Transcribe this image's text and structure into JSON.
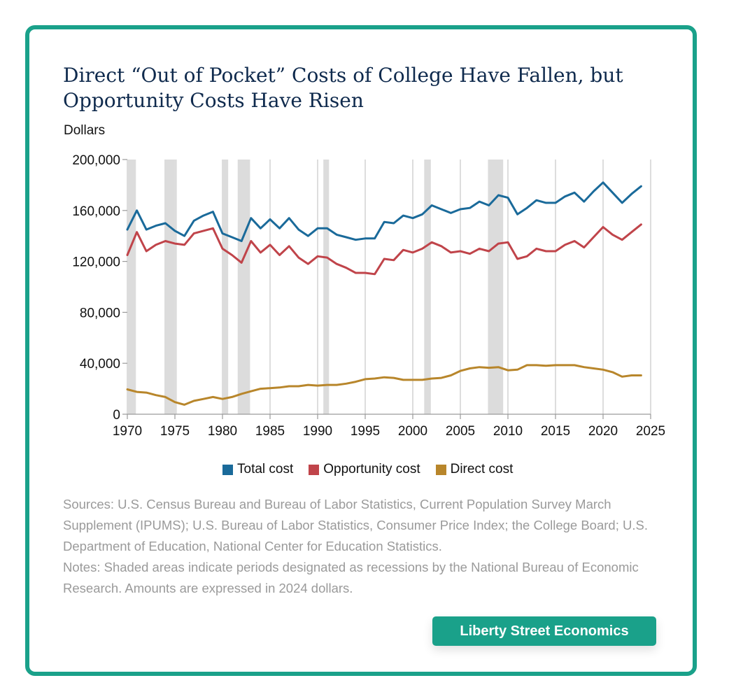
{
  "title": "Direct “Out of Pocket” Costs of College Have Fallen, but Opportunity Costs Have Risen",
  "y_unit_label": "Dollars",
  "sources": "Sources: U.S. Census Bureau and Bureau of Labor Statistics, Current Population Survey March Supplement (IPUMS); U.S. Bureau of Labor Statistics, Consumer Price Index; the College Board; U.S. Department of Education, National Center for Education Statistics.",
  "notes": "Notes: Shaded areas indicate periods designated as recessions by the National Bureau of Economic Research. Amounts are expressed in 2024 dollars.",
  "brand": "Liberty Street Economics",
  "colors": {
    "accent": "#1aa18a",
    "total": "#1a6a9a",
    "opportunity": "#c0444a",
    "direct": "#b8862b",
    "recession": "#dcdcdc"
  },
  "chart_data": {
    "type": "line",
    "ylabel": "Dollars",
    "xlim": [
      1970,
      2025
    ],
    "ylim": [
      0,
      200000
    ],
    "x_ticks": [
      1970,
      1975,
      1980,
      1985,
      1990,
      1995,
      2000,
      2005,
      2010,
      2015,
      2020,
      2025
    ],
    "y_ticks": [
      0,
      40000,
      80000,
      120000,
      160000,
      200000
    ],
    "x_tick_labels": [
      "1970",
      "1975",
      "1980",
      "1985",
      "1990",
      "1995",
      "2000",
      "2005",
      "2010",
      "2015",
      "2020",
      "2025"
    ],
    "y_tick_labels": [
      "0",
      "40,000",
      "80,000",
      "120,000",
      "160,000",
      "200,000"
    ],
    "recessions": [
      [
        1970.0,
        1970.9
      ],
      [
        1973.9,
        1975.2
      ],
      [
        1980.0,
        1980.6
      ],
      [
        1981.6,
        1982.9
      ],
      [
        1990.6,
        1991.2
      ],
      [
        2001.2,
        2001.9
      ],
      [
        2007.9,
        2009.5
      ]
    ],
    "legend_position": "bottom",
    "grid": "vertical",
    "x": [
      1970,
      1971,
      1972,
      1973,
      1974,
      1975,
      1976,
      1977,
      1978,
      1979,
      1980,
      1981,
      1982,
      1983,
      1984,
      1985,
      1986,
      1987,
      1988,
      1989,
      1990,
      1991,
      1992,
      1993,
      1994,
      1995,
      1996,
      1997,
      1998,
      1999,
      2000,
      2001,
      2002,
      2003,
      2004,
      2005,
      2006,
      2007,
      2008,
      2009,
      2010,
      2011,
      2012,
      2013,
      2014,
      2015,
      2016,
      2017,
      2018,
      2019,
      2020,
      2021,
      2022,
      2023,
      2024
    ],
    "series": [
      {
        "name": "Total cost",
        "color": "#1a6a9a",
        "values": [
          145000,
          160000,
          145000,
          148000,
          150000,
          144000,
          140000,
          152000,
          156000,
          159000,
          142000,
          139000,
          136000,
          154000,
          146000,
          153000,
          146000,
          154000,
          145000,
          140000,
          146000,
          146000,
          141000,
          139000,
          137000,
          138000,
          138000,
          151000,
          150000,
          156000,
          154000,
          157000,
          164000,
          161000,
          158000,
          161000,
          162000,
          167000,
          164000,
          172000,
          170000,
          157000,
          162000,
          168000,
          166000,
          166000,
          171000,
          174000,
          167000,
          175000,
          182000,
          174000,
          166000,
          173000,
          179000
        ]
      },
      {
        "name": "Opportunity cost",
        "color": "#c0444a",
        "values": [
          125000,
          143000,
          128000,
          133000,
          136000,
          134000,
          133000,
          142000,
          144000,
          146000,
          130000,
          125000,
          119000,
          136000,
          127000,
          133000,
          125000,
          132000,
          123000,
          118000,
          124000,
          123000,
          118000,
          115000,
          111000,
          111000,
          110000,
          122000,
          121000,
          129000,
          127000,
          130000,
          135000,
          132000,
          127000,
          128000,
          126000,
          130000,
          128000,
          134000,
          135000,
          122000,
          124000,
          130000,
          128000,
          128000,
          133000,
          136000,
          131000,
          139000,
          147000,
          141000,
          137000,
          143000,
          149000
        ]
      },
      {
        "name": "Direct cost",
        "color": "#b8862b",
        "values": [
          19500,
          17500,
          17000,
          15000,
          13500,
          9500,
          7500,
          10500,
          12000,
          13500,
          12000,
          13500,
          16000,
          18000,
          20000,
          20500,
          21000,
          22000,
          22000,
          23000,
          22500,
          23000,
          23000,
          24000,
          25500,
          27500,
          28000,
          29000,
          28500,
          27000,
          27000,
          27000,
          28000,
          28500,
          30500,
          34000,
          36000,
          37000,
          36500,
          37000,
          34500,
          35000,
          38500,
          38500,
          38000,
          38500,
          38500,
          38500,
          37000,
          36000,
          35000,
          33000,
          29500,
          30500,
          30500
        ]
      }
    ]
  }
}
